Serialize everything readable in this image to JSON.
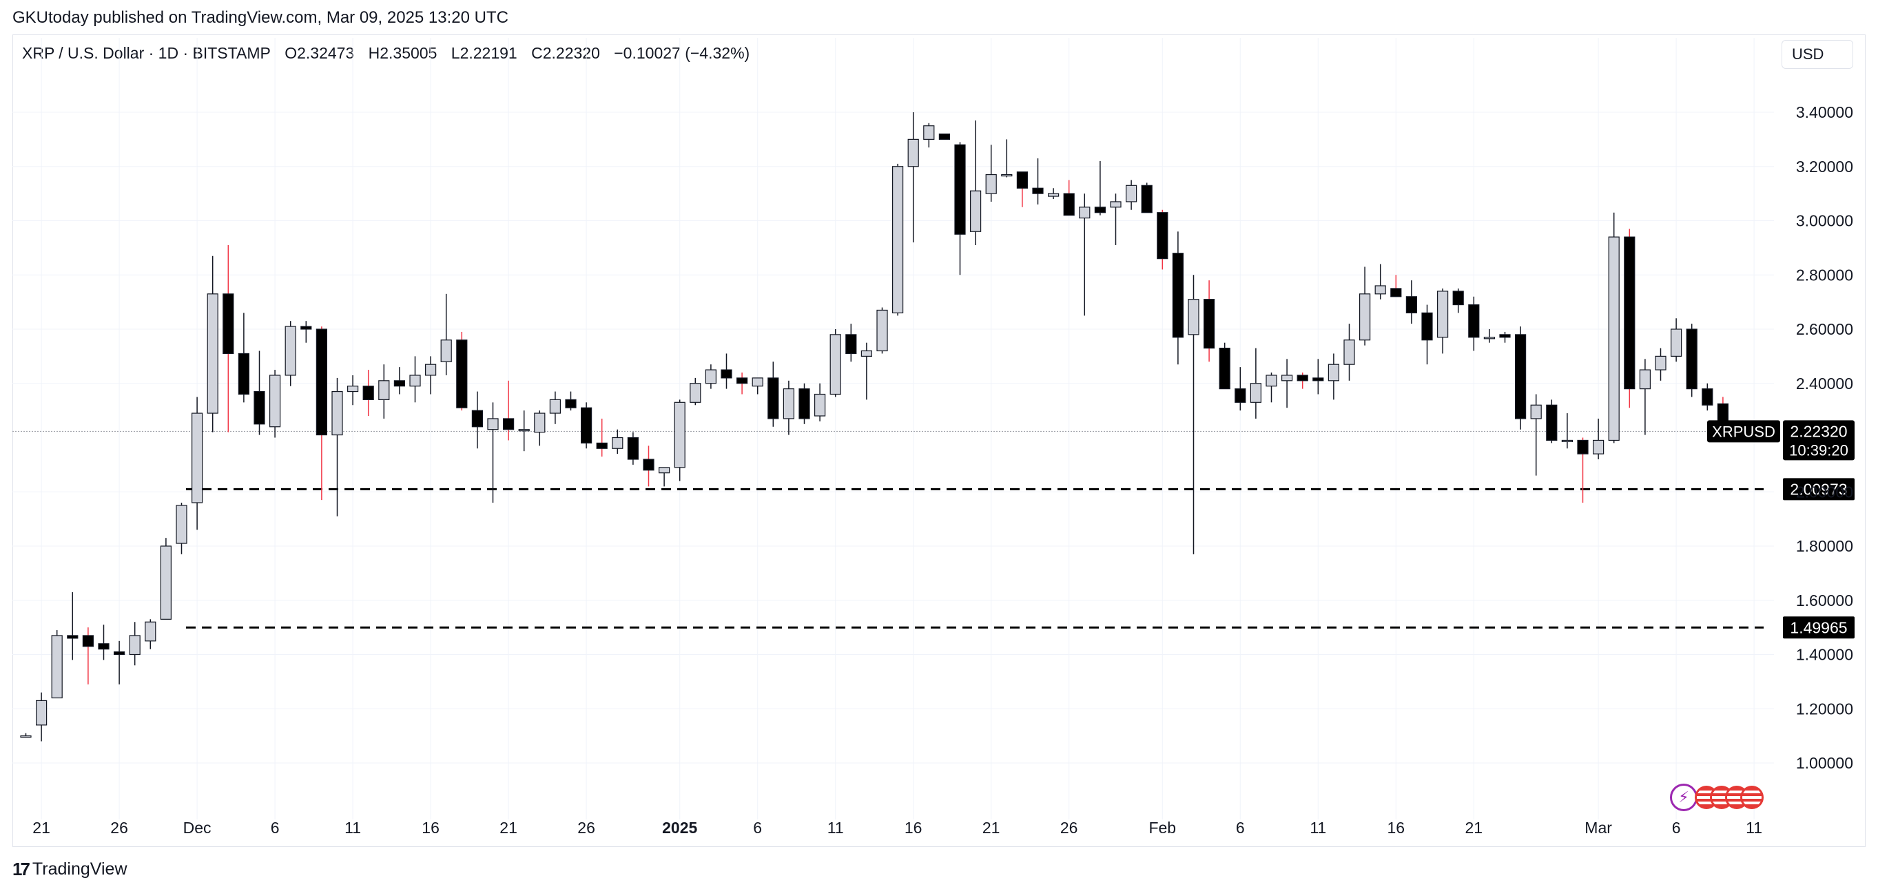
{
  "header": {
    "published": "GKUtoday published on TradingView.com, Mar 09, 2025 13:20 UTC"
  },
  "legend": {
    "symbol": "XRP / U.S. Dollar · 1D · BITSTAMP",
    "open": "O2.32473",
    "high": "H2.35005",
    "low": "L2.22191",
    "close": "C2.22320",
    "change": "−0.10027 (−4.32%)"
  },
  "currency_button": "USD",
  "branding": {
    "logo_text": "TradingView"
  },
  "colors": {
    "up_fill": "#d1d4dc",
    "down_fill": "#000000",
    "wick": "#131722",
    "highlight_wick": "#f23645",
    "grid": "#f0f3fa",
    "label_bg": "#000000"
  },
  "chart_data": {
    "type": "candlestick",
    "symbol": "XRPUSD",
    "timeframe": "1D",
    "exchange": "BITSTAMP",
    "ylim": [
      0.88,
      3.62
    ],
    "y_ticks": [
      "3.40000",
      "3.20000",
      "3.00000",
      "2.80000",
      "2.60000",
      "2.40000",
      "2.00000",
      "1.80000",
      "1.60000",
      "1.40000",
      "1.20000",
      "1.00000"
    ],
    "x_ticks": [
      {
        "label": "21",
        "i": 1
      },
      {
        "label": "26",
        "i": 6
      },
      {
        "label": "Dec",
        "i": 11
      },
      {
        "label": "6",
        "i": 16
      },
      {
        "label": "11",
        "i": 21
      },
      {
        "label": "16",
        "i": 26
      },
      {
        "label": "21",
        "i": 31
      },
      {
        "label": "26",
        "i": 36
      },
      {
        "label": "2025",
        "i": 42
      },
      {
        "label": "6",
        "i": 47
      },
      {
        "label": "11",
        "i": 52
      },
      {
        "label": "16",
        "i": 57
      },
      {
        "label": "21",
        "i": 62
      },
      {
        "label": "26",
        "i": 67
      },
      {
        "label": "Feb",
        "i": 73
      },
      {
        "label": "6",
        "i": 78
      },
      {
        "label": "11",
        "i": 83
      },
      {
        "label": "16",
        "i": 88
      },
      {
        "label": "21",
        "i": 93
      },
      {
        "label": "Mar",
        "i": 101
      },
      {
        "label": "6",
        "i": 106
      },
      {
        "label": "11",
        "i": 111
      }
    ],
    "bold_ticks": [
      "2025"
    ],
    "price_label": {
      "name": "XRPUSD",
      "value": "2.22320",
      "countdown": "10:39:20"
    },
    "levels": [
      {
        "value": 2.00973,
        "label": "2.00973"
      },
      {
        "value": 1.49965,
        "label": "1.49965"
      }
    ],
    "candles": [
      {
        "i": 0,
        "o": 1.1,
        "h": 1.11,
        "l": 1.1,
        "c": 1.1
      },
      {
        "i": 1,
        "o": 1.14,
        "h": 1.26,
        "l": 1.08,
        "c": 1.23
      },
      {
        "i": 2,
        "o": 1.24,
        "h": 1.49,
        "l": 1.24,
        "c": 1.47
      },
      {
        "i": 3,
        "o": 1.47,
        "h": 1.63,
        "l": 1.38,
        "c": 1.46
      },
      {
        "i": 4,
        "o": 1.47,
        "h": 1.5,
        "l": 1.29,
        "c": 1.43
      },
      {
        "i": 5,
        "o": 1.44,
        "h": 1.51,
        "l": 1.38,
        "c": 1.42
      },
      {
        "i": 6,
        "o": 1.41,
        "h": 1.45,
        "l": 1.29,
        "c": 1.4
      },
      {
        "i": 7,
        "o": 1.4,
        "h": 1.52,
        "l": 1.36,
        "c": 1.47
      },
      {
        "i": 8,
        "o": 1.45,
        "h": 1.53,
        "l": 1.42,
        "c": 1.52
      },
      {
        "i": 9,
        "o": 1.53,
        "h": 1.83,
        "l": 1.53,
        "c": 1.8
      },
      {
        "i": 10,
        "o": 1.81,
        "h": 1.96,
        "l": 1.77,
        "c": 1.95
      },
      {
        "i": 11,
        "o": 1.96,
        "h": 2.35,
        "l": 1.86,
        "c": 2.29
      },
      {
        "i": 12,
        "o": 2.29,
        "h": 2.87,
        "l": 2.22,
        "c": 2.73
      },
      {
        "i": 13,
        "o": 2.73,
        "h": 2.91,
        "l": 2.22,
        "c": 2.51
      },
      {
        "i": 14,
        "o": 2.51,
        "h": 2.66,
        "l": 2.33,
        "c": 2.36
      },
      {
        "i": 15,
        "o": 2.37,
        "h": 2.52,
        "l": 2.21,
        "c": 2.25
      },
      {
        "i": 16,
        "o": 2.24,
        "h": 2.45,
        "l": 2.2,
        "c": 2.43
      },
      {
        "i": 17,
        "o": 2.43,
        "h": 2.63,
        "l": 2.39,
        "c": 2.61
      },
      {
        "i": 18,
        "o": 2.61,
        "h": 2.63,
        "l": 2.55,
        "c": 2.6
      },
      {
        "i": 19,
        "o": 2.6,
        "h": 2.61,
        "l": 1.97,
        "c": 2.21
      },
      {
        "i": 20,
        "o": 2.21,
        "h": 2.42,
        "l": 1.91,
        "c": 2.37
      },
      {
        "i": 21,
        "o": 2.37,
        "h": 2.43,
        "l": 2.32,
        "c": 2.39
      },
      {
        "i": 22,
        "o": 2.39,
        "h": 2.45,
        "l": 2.28,
        "c": 2.34
      },
      {
        "i": 23,
        "o": 2.34,
        "h": 2.47,
        "l": 2.27,
        "c": 2.41
      },
      {
        "i": 24,
        "o": 2.41,
        "h": 2.46,
        "l": 2.36,
        "c": 2.39
      },
      {
        "i": 25,
        "o": 2.39,
        "h": 2.5,
        "l": 2.33,
        "c": 2.43
      },
      {
        "i": 26,
        "o": 2.43,
        "h": 2.5,
        "l": 2.36,
        "c": 2.47
      },
      {
        "i": 27,
        "o": 2.48,
        "h": 2.73,
        "l": 2.43,
        "c": 2.56
      },
      {
        "i": 28,
        "o": 2.56,
        "h": 2.59,
        "l": 2.3,
        "c": 2.31
      },
      {
        "i": 29,
        "o": 2.3,
        "h": 2.37,
        "l": 2.16,
        "c": 2.24
      },
      {
        "i": 30,
        "o": 2.23,
        "h": 2.33,
        "l": 1.96,
        "c": 2.27
      },
      {
        "i": 31,
        "o": 2.27,
        "h": 2.41,
        "l": 2.19,
        "c": 2.23
      },
      {
        "i": 32,
        "o": 2.23,
        "h": 2.3,
        "l": 2.15,
        "c": 2.23
      },
      {
        "i": 33,
        "o": 2.22,
        "h": 2.3,
        "l": 2.17,
        "c": 2.29
      },
      {
        "i": 34,
        "o": 2.29,
        "h": 2.37,
        "l": 2.25,
        "c": 2.34
      },
      {
        "i": 35,
        "o": 2.34,
        "h": 2.37,
        "l": 2.3,
        "c": 2.31
      },
      {
        "i": 36,
        "o": 2.31,
        "h": 2.33,
        "l": 2.16,
        "c": 2.18
      },
      {
        "i": 37,
        "o": 2.18,
        "h": 2.27,
        "l": 2.13,
        "c": 2.16
      },
      {
        "i": 38,
        "o": 2.16,
        "h": 2.23,
        "l": 2.14,
        "c": 2.2
      },
      {
        "i": 39,
        "o": 2.2,
        "h": 2.22,
        "l": 2.1,
        "c": 2.12
      },
      {
        "i": 40,
        "o": 2.12,
        "h": 2.17,
        "l": 2.02,
        "c": 2.08
      },
      {
        "i": 41,
        "o": 2.07,
        "h": 2.09,
        "l": 2.02,
        "c": 2.09
      },
      {
        "i": 42,
        "o": 2.09,
        "h": 2.34,
        "l": 2.04,
        "c": 2.33
      },
      {
        "i": 43,
        "o": 2.33,
        "h": 2.42,
        "l": 2.32,
        "c": 2.4
      },
      {
        "i": 44,
        "o": 2.4,
        "h": 2.47,
        "l": 2.38,
        "c": 2.45
      },
      {
        "i": 45,
        "o": 2.45,
        "h": 2.51,
        "l": 2.38,
        "c": 2.42
      },
      {
        "i": 46,
        "o": 2.42,
        "h": 2.44,
        "l": 2.36,
        "c": 2.4
      },
      {
        "i": 47,
        "o": 2.39,
        "h": 2.42,
        "l": 2.36,
        "c": 2.42
      },
      {
        "i": 48,
        "o": 2.42,
        "h": 2.48,
        "l": 2.24,
        "c": 2.27
      },
      {
        "i": 49,
        "o": 2.27,
        "h": 2.41,
        "l": 2.21,
        "c": 2.38
      },
      {
        "i": 50,
        "o": 2.38,
        "h": 2.4,
        "l": 2.25,
        "c": 2.27
      },
      {
        "i": 51,
        "o": 2.28,
        "h": 2.4,
        "l": 2.26,
        "c": 2.36
      },
      {
        "i": 52,
        "o": 2.36,
        "h": 2.6,
        "l": 2.35,
        "c": 2.58
      },
      {
        "i": 53,
        "o": 2.58,
        "h": 2.62,
        "l": 2.48,
        "c": 2.51
      },
      {
        "i": 54,
        "o": 2.5,
        "h": 2.55,
        "l": 2.34,
        "c": 2.52
      },
      {
        "i": 55,
        "o": 2.52,
        "h": 2.68,
        "l": 2.51,
        "c": 2.67
      },
      {
        "i": 56,
        "o": 2.66,
        "h": 3.21,
        "l": 2.65,
        "c": 3.2
      },
      {
        "i": 57,
        "o": 3.2,
        "h": 3.4,
        "l": 2.92,
        "c": 3.3
      },
      {
        "i": 58,
        "o": 3.3,
        "h": 3.36,
        "l": 3.27,
        "c": 3.35
      },
      {
        "i": 59,
        "o": 3.32,
        "h": 3.32,
        "l": 3.3,
        "c": 3.3
      },
      {
        "i": 60,
        "o": 3.28,
        "h": 3.29,
        "l": 2.8,
        "c": 2.95
      },
      {
        "i": 61,
        "o": 2.96,
        "h": 3.37,
        "l": 2.91,
        "c": 3.11
      },
      {
        "i": 62,
        "o": 3.1,
        "h": 3.28,
        "l": 3.07,
        "c": 3.17
      },
      {
        "i": 63,
        "o": 3.17,
        "h": 3.3,
        "l": 3.16,
        "c": 3.17
      },
      {
        "i": 64,
        "o": 3.18,
        "h": 3.18,
        "l": 3.05,
        "c": 3.12
      },
      {
        "i": 65,
        "o": 3.12,
        "h": 3.23,
        "l": 3.06,
        "c": 3.1
      },
      {
        "i": 66,
        "o": 3.09,
        "h": 3.12,
        "l": 3.08,
        "c": 3.1
      },
      {
        "i": 67,
        "o": 3.1,
        "h": 3.15,
        "l": 3.02,
        "c": 3.02
      },
      {
        "i": 68,
        "o": 3.01,
        "h": 3.1,
        "l": 2.65,
        "c": 3.05
      },
      {
        "i": 69,
        "o": 3.05,
        "h": 3.22,
        "l": 3.02,
        "c": 3.03
      },
      {
        "i": 70,
        "o": 3.05,
        "h": 3.1,
        "l": 2.91,
        "c": 3.07
      },
      {
        "i": 71,
        "o": 3.07,
        "h": 3.15,
        "l": 3.04,
        "c": 3.13
      },
      {
        "i": 72,
        "o": 3.13,
        "h": 3.14,
        "l": 3.03,
        "c": 3.03
      },
      {
        "i": 73,
        "o": 3.03,
        "h": 3.04,
        "l": 2.82,
        "c": 2.86
      },
      {
        "i": 74,
        "o": 2.88,
        "h": 2.96,
        "l": 2.47,
        "c": 2.57
      },
      {
        "i": 75,
        "o": 2.58,
        "h": 2.8,
        "l": 1.77,
        "c": 2.71
      },
      {
        "i": 76,
        "o": 2.71,
        "h": 2.78,
        "l": 2.48,
        "c": 2.53
      },
      {
        "i": 77,
        "o": 2.53,
        "h": 2.55,
        "l": 2.38,
        "c": 2.38
      },
      {
        "i": 78,
        "o": 2.38,
        "h": 2.46,
        "l": 2.3,
        "c": 2.33
      },
      {
        "i": 79,
        "o": 2.33,
        "h": 2.53,
        "l": 2.27,
        "c": 2.4
      },
      {
        "i": 80,
        "o": 2.39,
        "h": 2.44,
        "l": 2.33,
        "c": 2.43
      },
      {
        "i": 81,
        "o": 2.41,
        "h": 2.49,
        "l": 2.31,
        "c": 2.43
      },
      {
        "i": 82,
        "o": 2.43,
        "h": 2.44,
        "l": 2.38,
        "c": 2.41
      },
      {
        "i": 83,
        "o": 2.42,
        "h": 2.49,
        "l": 2.36,
        "c": 2.41
      },
      {
        "i": 84,
        "o": 2.41,
        "h": 2.51,
        "l": 2.34,
        "c": 2.47
      },
      {
        "i": 85,
        "o": 2.47,
        "h": 2.62,
        "l": 2.41,
        "c": 2.56
      },
      {
        "i": 86,
        "o": 2.56,
        "h": 2.83,
        "l": 2.54,
        "c": 2.73
      },
      {
        "i": 87,
        "o": 2.73,
        "h": 2.84,
        "l": 2.71,
        "c": 2.76
      },
      {
        "i": 88,
        "o": 2.75,
        "h": 2.8,
        "l": 2.72,
        "c": 2.72
      },
      {
        "i": 89,
        "o": 2.72,
        "h": 2.78,
        "l": 2.62,
        "c": 2.66
      },
      {
        "i": 90,
        "o": 2.66,
        "h": 2.69,
        "l": 2.47,
        "c": 2.56
      },
      {
        "i": 91,
        "o": 2.57,
        "h": 2.75,
        "l": 2.51,
        "c": 2.74
      },
      {
        "i": 92,
        "o": 2.74,
        "h": 2.75,
        "l": 2.66,
        "c": 2.69
      },
      {
        "i": 93,
        "o": 2.69,
        "h": 2.72,
        "l": 2.52,
        "c": 2.57
      },
      {
        "i": 94,
        "o": 2.57,
        "h": 2.6,
        "l": 2.55,
        "c": 2.57
      },
      {
        "i": 95,
        "o": 2.58,
        "h": 2.59,
        "l": 2.55,
        "c": 2.57
      },
      {
        "i": 96,
        "o": 2.58,
        "h": 2.61,
        "l": 2.23,
        "c": 2.27
      },
      {
        "i": 97,
        "o": 2.27,
        "h": 2.36,
        "l": 2.06,
        "c": 2.32
      },
      {
        "i": 98,
        "o": 2.32,
        "h": 2.34,
        "l": 2.18,
        "c": 2.19
      },
      {
        "i": 99,
        "o": 2.19,
        "h": 2.29,
        "l": 2.16,
        "c": 2.19
      },
      {
        "i": 100,
        "o": 2.19,
        "h": 2.2,
        "l": 1.96,
        "c": 2.14
      },
      {
        "i": 101,
        "o": 2.14,
        "h": 2.27,
        "l": 2.12,
        "c": 2.19
      },
      {
        "i": 102,
        "o": 2.19,
        "h": 3.03,
        "l": 2.18,
        "c": 2.94
      },
      {
        "i": 103,
        "o": 2.94,
        "h": 2.97,
        "l": 2.31,
        "c": 2.38
      },
      {
        "i": 104,
        "o": 2.38,
        "h": 2.49,
        "l": 2.21,
        "c": 2.45
      },
      {
        "i": 105,
        "o": 2.45,
        "h": 2.53,
        "l": 2.41,
        "c": 2.5
      },
      {
        "i": 106,
        "o": 2.5,
        "h": 2.64,
        "l": 2.48,
        "c": 2.6
      },
      {
        "i": 107,
        "o": 2.6,
        "h": 2.62,
        "l": 2.35,
        "c": 2.38
      },
      {
        "i": 108,
        "o": 2.38,
        "h": 2.4,
        "l": 2.3,
        "c": 2.32
      },
      {
        "i": 109,
        "o": 2.32473,
        "h": 2.35005,
        "l": 2.22191,
        "c": 2.2232
      }
    ]
  }
}
